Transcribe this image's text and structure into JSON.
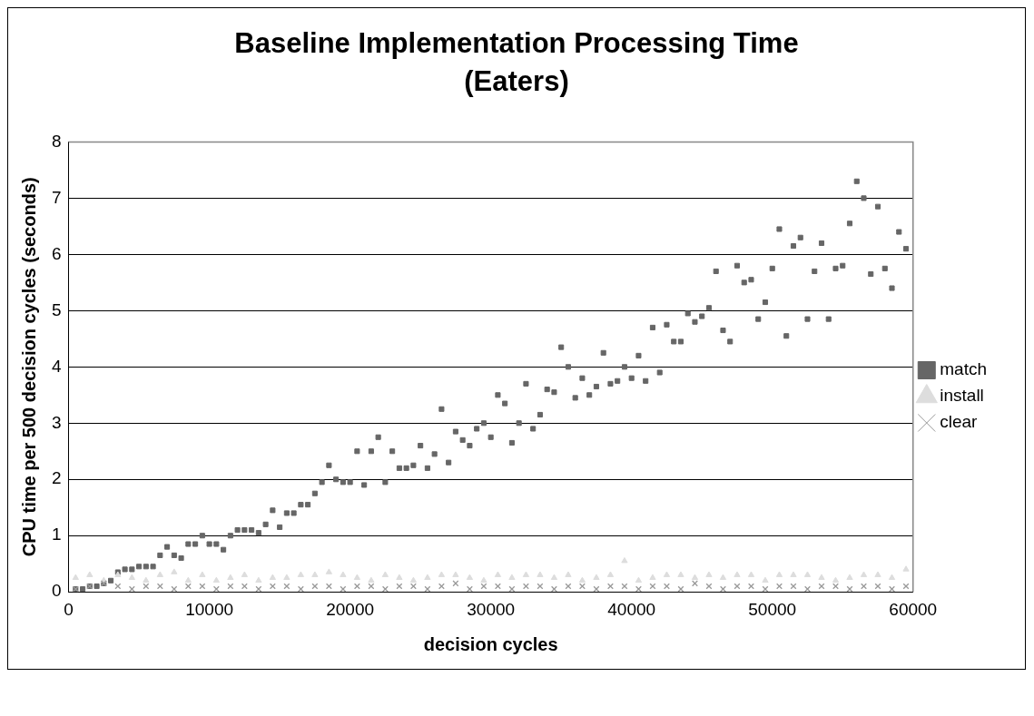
{
  "chart_data": {
    "type": "scatter",
    "title": "Baseline Implementation Processing Time (Eaters)",
    "xlabel": "decision cycles",
    "ylabel": "CPU time per 500 decision cycles (seconds)",
    "xlim": [
      0,
      60000
    ],
    "xticks": [
      0,
      10000,
      20000,
      30000,
      40000,
      50000,
      60000
    ],
    "ylim": [
      0,
      8
    ],
    "yticks": [
      0,
      1,
      2,
      3,
      4,
      5,
      6,
      7,
      8
    ],
    "grid": "y",
    "legend": "right",
    "series": [
      {
        "name": "match",
        "color": "#666666",
        "marker": "square",
        "x": [
          500,
          1000,
          1500,
          2000,
          2500,
          3000,
          3500,
          4000,
          4500,
          5000,
          5500,
          6000,
          6500,
          7000,
          7500,
          8000,
          8500,
          9000,
          9500,
          10000,
          10500,
          11000,
          11500,
          12000,
          12500,
          13000,
          13500,
          14000,
          14500,
          15000,
          15500,
          16000,
          16500,
          17000,
          17500,
          18000,
          18500,
          19000,
          19500,
          20000,
          20500,
          21000,
          21500,
          22000,
          22500,
          23000,
          23500,
          24000,
          24500,
          25000,
          25500,
          26000,
          26500,
          27000,
          27500,
          28000,
          28500,
          29000,
          29500,
          30000,
          30500,
          31000,
          31500,
          32000,
          32500,
          33000,
          33500,
          34000,
          34500,
          35000,
          35500,
          36000,
          36500,
          37000,
          37500,
          38000,
          38500,
          39000,
          39500,
          40000,
          40500,
          41000,
          41500,
          42000,
          42500,
          43000,
          43500,
          44000,
          44500,
          45000,
          45500,
          46000,
          46500,
          47000,
          47500,
          48000,
          48500,
          49000,
          49500,
          50000,
          50500,
          51000,
          51500,
          52000,
          52500,
          53000,
          53500,
          54000,
          54500,
          55000,
          55500,
          56000,
          56500,
          57000,
          57500,
          58000,
          58500,
          59000,
          59500
        ],
        "values": [
          0.05,
          0.05,
          0.1,
          0.1,
          0.15,
          0.2,
          0.35,
          0.4,
          0.4,
          0.45,
          0.45,
          0.45,
          0.65,
          0.8,
          0.65,
          0.6,
          0.85,
          0.85,
          1.0,
          0.85,
          0.85,
          0.75,
          1.0,
          1.1,
          1.1,
          1.1,
          1.05,
          1.2,
          1.45,
          1.15,
          1.4,
          1.4,
          1.55,
          1.55,
          1.75,
          1.95,
          2.25,
          2.0,
          1.95,
          1.95,
          2.5,
          1.9,
          2.5,
          2.75,
          1.95,
          2.5,
          2.2,
          2.2,
          2.25,
          2.6,
          2.2,
          2.45,
          3.25,
          2.3,
          2.85,
          2.7,
          2.6,
          2.9,
          3.0,
          2.75,
          3.5,
          3.35,
          2.65,
          3.0,
          3.7,
          2.9,
          3.15,
          3.6,
          3.55,
          4.35,
          4.0,
          3.45,
          3.8,
          3.5,
          3.65,
          4.25,
          3.7,
          3.75,
          4.0,
          3.8,
          4.2,
          3.75,
          4.7,
          3.9,
          4.75,
          4.45,
          4.45,
          4.95,
          4.8,
          4.9,
          5.05,
          5.7,
          4.65,
          4.45,
          5.8,
          5.5,
          5.55,
          4.85,
          5.15,
          5.75,
          6.45,
          4.55,
          6.15,
          6.3,
          4.85,
          5.7,
          6.2,
          4.85,
          5.75,
          5.8,
          6.55,
          7.3,
          7.0,
          5.65,
          6.85,
          5.75,
          5.4,
          6.4,
          6.1
        ]
      },
      {
        "name": "install",
        "color": "#dddddd",
        "marker": "triangle",
        "x": [
          500,
          1500,
          2500,
          3500,
          4500,
          5500,
          6500,
          7500,
          8500,
          9500,
          10500,
          11500,
          12500,
          13500,
          14500,
          15500,
          16500,
          17500,
          18500,
          19500,
          20500,
          21500,
          22500,
          23500,
          24500,
          25500,
          26500,
          27500,
          28500,
          29500,
          30500,
          31500,
          32500,
          33500,
          34500,
          35500,
          36500,
          37500,
          38500,
          39500,
          40500,
          41500,
          42500,
          43500,
          44500,
          45500,
          46500,
          47500,
          48500,
          49500,
          50500,
          51500,
          52500,
          53500,
          54500,
          55500,
          56500,
          57500,
          58500,
          59500
        ],
        "values": [
          0.25,
          0.3,
          0.2,
          0.3,
          0.25,
          0.2,
          0.3,
          0.35,
          0.2,
          0.3,
          0.2,
          0.25,
          0.3,
          0.2,
          0.25,
          0.25,
          0.3,
          0.3,
          0.35,
          0.3,
          0.25,
          0.2,
          0.3,
          0.25,
          0.2,
          0.25,
          0.3,
          0.3,
          0.25,
          0.2,
          0.3,
          0.25,
          0.3,
          0.3,
          0.25,
          0.3,
          0.2,
          0.25,
          0.3,
          0.55,
          0.2,
          0.25,
          0.3,
          0.3,
          0.25,
          0.3,
          0.25,
          0.3,
          0.3,
          0.2,
          0.3,
          0.3,
          0.3,
          0.25,
          0.2,
          0.25,
          0.3,
          0.3,
          0.25,
          0.4
        ]
      },
      {
        "name": "clear",
        "color": "#999999",
        "marker": "cross",
        "x": [
          500,
          1500,
          2500,
          3500,
          4500,
          5500,
          6500,
          7500,
          8500,
          9500,
          10500,
          11500,
          12500,
          13500,
          14500,
          15500,
          16500,
          17500,
          18500,
          19500,
          20500,
          21500,
          22500,
          23500,
          24500,
          25500,
          26500,
          27500,
          28500,
          29500,
          30500,
          31500,
          32500,
          33500,
          34500,
          35500,
          36500,
          37500,
          38500,
          39500,
          40500,
          41500,
          42500,
          43500,
          44500,
          45500,
          46500,
          47500,
          48500,
          49500,
          50500,
          51500,
          52500,
          53500,
          54500,
          55500,
          56500,
          57500,
          58500,
          59500
        ],
        "values": [
          0.05,
          0.1,
          0.15,
          0.1,
          0.05,
          0.1,
          0.1,
          0.05,
          0.1,
          0.1,
          0.05,
          0.1,
          0.1,
          0.05,
          0.1,
          0.1,
          0.05,
          0.1,
          0.1,
          0.05,
          0.1,
          0.1,
          0.05,
          0.1,
          0.1,
          0.05,
          0.1,
          0.15,
          0.05,
          0.1,
          0.1,
          0.05,
          0.1,
          0.1,
          0.05,
          0.1,
          0.1,
          0.05,
          0.1,
          0.1,
          0.05,
          0.1,
          0.1,
          0.05,
          0.15,
          0.1,
          0.05,
          0.1,
          0.1,
          0.05,
          0.1,
          0.1,
          0.05,
          0.1,
          0.1,
          0.05,
          0.1,
          0.1,
          0.05,
          0.1
        ]
      }
    ]
  }
}
